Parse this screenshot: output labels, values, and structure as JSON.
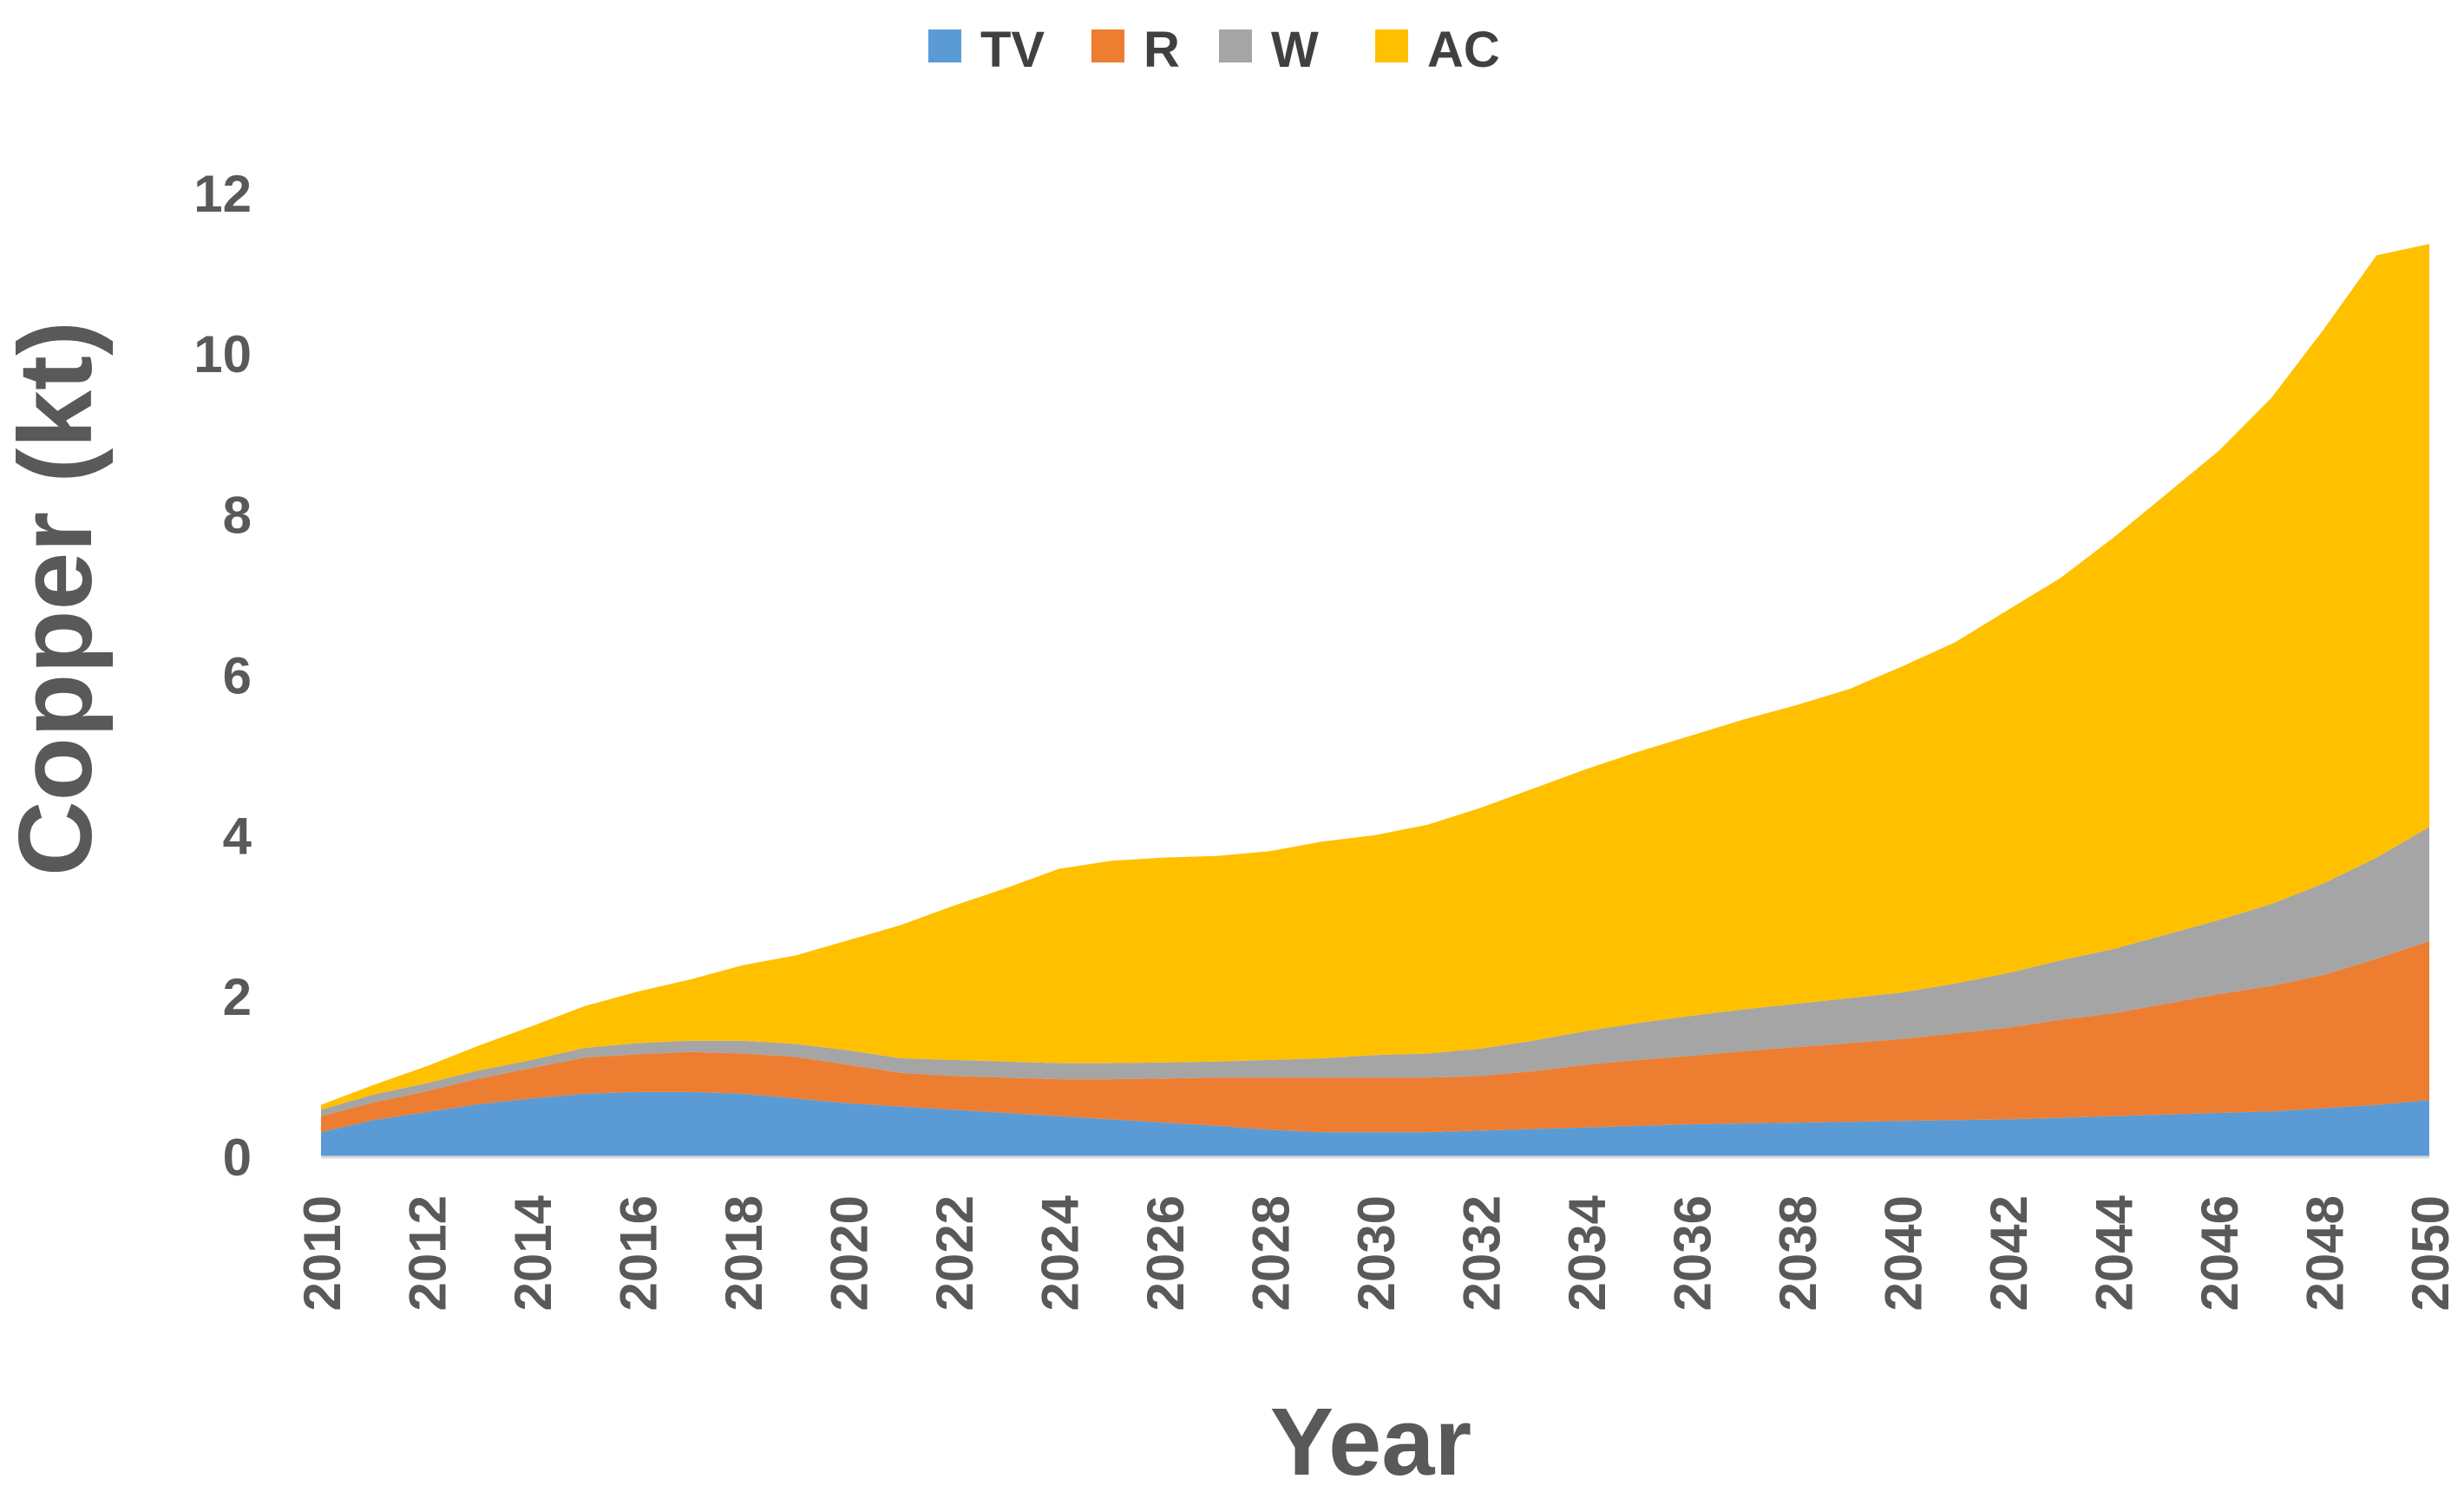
{
  "chart_data": {
    "type": "area",
    "stacked": true,
    "title": "",
    "xlabel": "Year",
    "ylabel": "Copper (kt)",
    "x": [
      2010,
      2011,
      2012,
      2013,
      2014,
      2015,
      2016,
      2017,
      2018,
      2019,
      2020,
      2021,
      2022,
      2023,
      2024,
      2025,
      2026,
      2027,
      2028,
      2029,
      2030,
      2031,
      2032,
      2033,
      2034,
      2035,
      2036,
      2037,
      2038,
      2039,
      2040,
      2041,
      2042,
      2043,
      2044,
      2045,
      2046,
      2047,
      2048,
      2049,
      2050
    ],
    "x_tick_labels": [
      "2010",
      "2012",
      "2014",
      "2016",
      "2018",
      "2020",
      "2022",
      "2024",
      "2026",
      "2028",
      "2030",
      "2032",
      "2034",
      "2036",
      "2038",
      "2040",
      "2042",
      "2044",
      "2046",
      "2048",
      "2050"
    ],
    "xlim": [
      2010,
      2050
    ],
    "ylim": [
      0,
      12
    ],
    "y_ticks": [
      0,
      2,
      4,
      6,
      8,
      10,
      12
    ],
    "y_tick_labels": [
      "0",
      "2",
      "4",
      "6",
      "8",
      "10",
      "12"
    ],
    "grid": false,
    "legend_position": "top-center",
    "series": [
      {
        "name": "TV",
        "color": "#5B9BD5",
        "values": [
          0.3,
          0.45,
          0.55,
          0.65,
          0.72,
          0.78,
          0.8,
          0.8,
          0.78,
          0.72,
          0.66,
          0.62,
          0.58,
          0.54,
          0.5,
          0.46,
          0.42,
          0.38,
          0.33,
          0.3,
          0.3,
          0.3,
          0.32,
          0.34,
          0.36,
          0.38,
          0.4,
          0.41,
          0.42,
          0.43,
          0.44,
          0.45,
          0.46,
          0.48,
          0.5,
          0.52,
          0.54,
          0.56,
          0.6,
          0.64,
          0.7
        ]
      },
      {
        "name": "R",
        "color": "#ED7D31",
        "values": [
          0.2,
          0.22,
          0.26,
          0.32,
          0.38,
          0.45,
          0.47,
          0.5,
          0.5,
          0.52,
          0.48,
          0.42,
          0.42,
          0.44,
          0.46,
          0.5,
          0.55,
          0.6,
          0.65,
          0.68,
          0.68,
          0.68,
          0.68,
          0.72,
          0.78,
          0.82,
          0.85,
          0.9,
          0.94,
          0.98,
          1.02,
          1.08,
          1.14,
          1.22,
          1.28,
          1.38,
          1.48,
          1.56,
          1.66,
          1.82,
          1.98
        ]
      },
      {
        "name": "W",
        "color": "#A5A5A5",
        "values": [
          0.08,
          0.1,
          0.1,
          0.1,
          0.1,
          0.12,
          0.14,
          0.14,
          0.16,
          0.16,
          0.18,
          0.18,
          0.2,
          0.2,
          0.2,
          0.2,
          0.2,
          0.2,
          0.22,
          0.24,
          0.28,
          0.3,
          0.34,
          0.38,
          0.42,
          0.46,
          0.5,
          0.52,
          0.54,
          0.56,
          0.58,
          0.62,
          0.68,
          0.74,
          0.8,
          0.86,
          0.92,
          1.02,
          1.14,
          1.26,
          1.42
        ]
      },
      {
        "name": "AC",
        "color": "#FFC000",
        "values": [
          0.06,
          0.12,
          0.21,
          0.31,
          0.42,
          0.52,
          0.64,
          0.76,
          0.94,
          1.1,
          1.37,
          1.66,
          1.92,
          2.16,
          2.42,
          2.52,
          2.55,
          2.56,
          2.6,
          2.7,
          2.74,
          2.85,
          3.0,
          3.14,
          3.26,
          3.38,
          3.49,
          3.61,
          3.72,
          3.85,
          4.06,
          4.25,
          4.52,
          4.76,
          5.12,
          5.48,
          5.84,
          6.3,
          6.9,
          7.5,
          7.26
        ]
      }
    ]
  }
}
